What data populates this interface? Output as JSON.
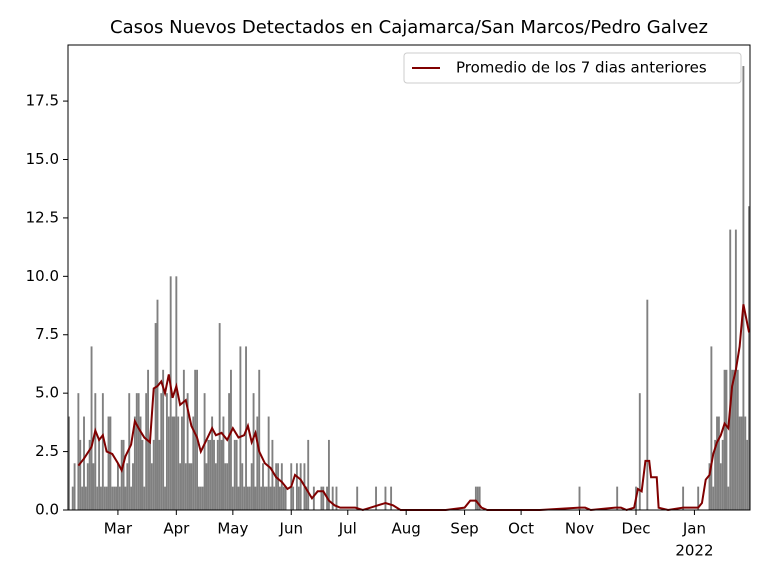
{
  "chart_data": {
    "type": "bar",
    "title": "Casos Nuevos Detectados en Cajamarca/San Marcos/Pedro Galvez",
    "color": "#808080",
    "x": [
      0,
      1,
      2,
      3,
      4,
      5,
      6,
      7,
      8,
      9,
      10,
      11,
      12,
      13,
      14,
      15,
      16,
      17,
      18,
      19,
      20,
      21,
      22,
      23,
      24,
      25,
      26,
      27,
      28,
      29,
      30,
      31,
      32,
      33,
      34,
      35,
      36,
      37,
      38,
      39,
      40,
      41,
      42,
      43,
      44,
      45,
      46,
      47,
      48,
      49,
      50,
      51,
      52,
      53,
      54,
      55,
      56,
      57,
      58,
      59,
      60,
      61,
      62,
      63,
      64,
      65,
      66,
      67,
      68,
      69,
      70,
      71,
      72,
      73,
      74,
      75,
      76,
      77,
      78,
      79,
      80,
      81,
      82,
      83,
      84,
      85,
      86,
      87,
      88,
      89,
      90,
      91,
      92,
      93,
      94,
      95,
      96,
      97,
      98,
      99,
      100,
      101,
      102,
      103,
      104,
      105,
      106,
      107,
      108,
      109,
      110,
      111,
      112,
      113,
      114,
      115,
      116,
      117,
      118,
      119,
      120,
      121,
      122,
      123,
      124,
      125,
      126,
      127,
      128,
      129,
      130,
      131,
      132,
      133,
      134,
      135,
      136,
      137,
      138,
      139,
      140,
      141,
      142,
      143,
      144,
      145,
      146,
      147,
      148,
      149,
      150,
      151,
      152,
      153,
      154,
      155,
      156,
      157,
      158,
      159,
      160,
      161,
      162,
      163,
      164,
      165,
      166,
      167,
      168,
      169,
      170,
      171,
      172,
      173,
      174,
      175,
      176,
      177,
      178,
      179,
      180,
      181,
      182,
      183,
      184,
      185,
      186,
      187,
      188,
      189,
      190,
      191,
      192,
      193,
      194,
      195,
      196,
      197,
      198,
      199,
      200,
      201,
      202,
      203,
      204,
      205,
      206,
      207,
      208,
      209,
      210,
      211,
      212,
      213,
      214,
      215,
      216,
      217,
      218,
      219,
      220,
      221,
      222,
      223,
      224,
      225,
      226,
      227,
      228,
      229,
      230,
      231,
      232,
      233,
      234,
      235,
      236,
      237,
      238,
      239,
      240,
      241,
      242,
      243,
      244,
      245,
      246,
      247,
      248,
      249,
      250,
      251,
      252,
      253,
      254,
      255,
      256,
      257,
      258,
      259,
      260,
      261,
      262,
      263,
      264,
      265,
      266,
      267,
      268,
      269,
      270,
      271,
      272,
      273,
      274,
      275,
      276,
      277,
      278,
      279,
      280,
      281,
      282,
      283,
      284,
      285,
      286,
      287,
      288,
      289,
      290,
      291,
      292,
      293,
      294,
      295,
      296,
      297,
      298,
      299,
      300,
      301,
      302,
      303,
      304,
      305,
      306,
      307,
      308,
      309,
      310,
      311,
      312,
      313,
      314,
      315,
      316,
      317,
      318,
      319,
      320,
      321,
      322,
      323,
      324,
      325,
      326,
      327,
      328,
      329,
      330,
      331,
      332,
      333,
      334,
      335,
      336,
      337,
      338,
      339,
      340,
      341,
      342,
      343,
      344,
      345,
      346,
      347,
      348,
      349,
      350,
      351,
      352,
      353,
      354,
      355,
      356,
      357,
      358,
      359,
      360,
      361
    ],
    "values": [
      4,
      0,
      1,
      2,
      0,
      5,
      3,
      1,
      4,
      1,
      2,
      3,
      7,
      2,
      5,
      1,
      3,
      1,
      5,
      1,
      1,
      4,
      4,
      1,
      1,
      1,
      2,
      1,
      3,
      3,
      1,
      2,
      5,
      1,
      2,
      4,
      5,
      5,
      4,
      3,
      1,
      5,
      6,
      3,
      2,
      3,
      8,
      9,
      3,
      5,
      6,
      1,
      5,
      4,
      10,
      4,
      4,
      10,
      4,
      2,
      4,
      6,
      2,
      5,
      2,
      2,
      4,
      6,
      6,
      1,
      1,
      1,
      5,
      2,
      3,
      3,
      4,
      3,
      2,
      3,
      8,
      3,
      4,
      2,
      2,
      5,
      6,
      1,
      3,
      3,
      1,
      7,
      2,
      1,
      7,
      1,
      1,
      2,
      5,
      1,
      4,
      6,
      1,
      2,
      1,
      1,
      4,
      1,
      3,
      1,
      2,
      2,
      1,
      2,
      1,
      1,
      0,
      0,
      2,
      1,
      0,
      2,
      1,
      2,
      0,
      2,
      1,
      3,
      0,
      0,
      1,
      0,
      0,
      0,
      1,
      1,
      0,
      1,
      3,
      0,
      1,
      0,
      1,
      0,
      0,
      0,
      0,
      0,
      0,
      0,
      0,
      0,
      0,
      1,
      0,
      0,
      0,
      0,
      0,
      0,
      0,
      0,
      0,
      1,
      0,
      0,
      0,
      0,
      1,
      0,
      0,
      1,
      0,
      0,
      0,
      0,
      0,
      0,
      0,
      0,
      0,
      0,
      0,
      0,
      0,
      0,
      0,
      0,
      0,
      0,
      0,
      0,
      0,
      0,
      0,
      0,
      0,
      0,
      0,
      0,
      0,
      0,
      0,
      0,
      0,
      0,
      0,
      0,
      0,
      0,
      0,
      0,
      0,
      0,
      0,
      0,
      1,
      1,
      1,
      0,
      0,
      0,
      0,
      0,
      0,
      0,
      0,
      0,
      0,
      0,
      0,
      0,
      0,
      0,
      0,
      0,
      0,
      0,
      0,
      0,
      0,
      0,
      0,
      0,
      0,
      0,
      0,
      0,
      0,
      0,
      0,
      0,
      0,
      0,
      0,
      0,
      0,
      0,
      0,
      0,
      0,
      0,
      0,
      0,
      0,
      0,
      0,
      0,
      0,
      0,
      0,
      1,
      0,
      0,
      0,
      0,
      0,
      0,
      0,
      0,
      0,
      0,
      0,
      0,
      0,
      0,
      0,
      0,
      0,
      0,
      0,
      1,
      0,
      0,
      0,
      0,
      0,
      0,
      0,
      0,
      0,
      1,
      0,
      5,
      0,
      0,
      0,
      9,
      0,
      0,
      0,
      0,
      0,
      0,
      0,
      0,
      0,
      0,
      0,
      0,
      0,
      0,
      0,
      0,
      0,
      0,
      1,
      0,
      0,
      0,
      0,
      0,
      0,
      0,
      1,
      0,
      0,
      0,
      0,
      0,
      2,
      7,
      1,
      3,
      4,
      4,
      2,
      3,
      6,
      6,
      1,
      12,
      6,
      6,
      12,
      6,
      4,
      4,
      19,
      4,
      3,
      13
    ],
    "series": [
      {
        "name": "Promedio de los 7 dias anteriores",
        "color": "#800000",
        "type": "line",
        "x": [
          5,
          8,
          12,
          14,
          16,
          18,
          20,
          23,
          26,
          28,
          30,
          33,
          35,
          37,
          40,
          43,
          45,
          47,
          49,
          51,
          53,
          55,
          57,
          59,
          62,
          65,
          68,
          70,
          73,
          76,
          78,
          81,
          84,
          87,
          90,
          93,
          95,
          97,
          99,
          101,
          104,
          107,
          110,
          113,
          116,
          118,
          120,
          123,
          126,
          129,
          132,
          135,
          138,
          141,
          144,
          148,
          152,
          156,
          160,
          164,
          168,
          172,
          176,
          180,
          200,
          210,
          213,
          216,
          219,
          222,
          250,
          271,
          274,
          277,
          290,
          293,
          296,
          300,
          302,
          304,
          306,
          308,
          309,
          312,
          313,
          318,
          326,
          330,
          334,
          336,
          338,
          340,
          342,
          344,
          346,
          348,
          350,
          352,
          354,
          356,
          358,
          361
        ],
        "values": [
          1.9,
          2.2,
          2.7,
          3.4,
          3.0,
          3.2,
          2.5,
          2.4,
          2.0,
          1.7,
          2.3,
          2.8,
          3.8,
          3.5,
          3.1,
          2.9,
          5.2,
          5.3,
          5.5,
          5.0,
          5.8,
          4.8,
          5.3,
          4.5,
          4.7,
          3.6,
          3.1,
          2.5,
          3.0,
          3.5,
          3.2,
          3.3,
          3.0,
          3.5,
          3.1,
          3.2,
          3.6,
          2.9,
          3.3,
          2.5,
          2.0,
          1.8,
          1.4,
          1.2,
          0.9,
          1.0,
          1.5,
          1.3,
          0.9,
          0.5,
          0.8,
          0.8,
          0.4,
          0.2,
          0.1,
          0.1,
          0.1,
          0.0,
          0.1,
          0.2,
          0.3,
          0.2,
          0.0,
          0,
          0,
          0.1,
          0.4,
          0.4,
          0.1,
          0,
          0,
          0.1,
          0.1,
          0.0,
          0.1,
          0.1,
          0.0,
          0.1,
          0.9,
          0.8,
          2.1,
          2.1,
          1.4,
          1.4,
          0.1,
          0,
          0.1,
          0.1,
          0.1,
          0.3,
          1.3,
          1.5,
          2.4,
          2.9,
          3.2,
          3.7,
          3.5,
          5.3,
          6.0,
          7.0,
          8.8,
          7.6
        ]
      }
    ],
    "xlim": [
      -0.5,
      361.5
    ],
    "xticks": [
      {
        "value": 26,
        "label": "Mar"
      },
      {
        "value": 57,
        "label": "Apr"
      },
      {
        "value": 87,
        "label": "May"
      },
      {
        "value": 118,
        "label": "Jun"
      },
      {
        "value": 148,
        "label": "Jul"
      },
      {
        "value": 179,
        "label": "Aug"
      },
      {
        "value": 210,
        "label": "Sep"
      },
      {
        "value": 240,
        "label": "Oct"
      },
      {
        "value": 271,
        "label": "Nov"
      },
      {
        "value": 301,
        "label": "Dec"
      },
      {
        "value": 332,
        "label": "Jan"
      }
    ],
    "xtick_sublabels": [
      {
        "value": 332,
        "label": "2022"
      }
    ],
    "ylim": [
      0,
      19.9
    ],
    "yticks": [
      {
        "value": 0,
        "label": "0.0"
      },
      2.5,
      {
        "value": 5,
        "label": "5.0"
      },
      7.5,
      {
        "value": 10,
        "label": "10.0"
      },
      12.5,
      {
        "value": 15,
        "label": "15.0"
      },
      17.5
    ],
    "grid": false,
    "legend": "upper right"
  }
}
